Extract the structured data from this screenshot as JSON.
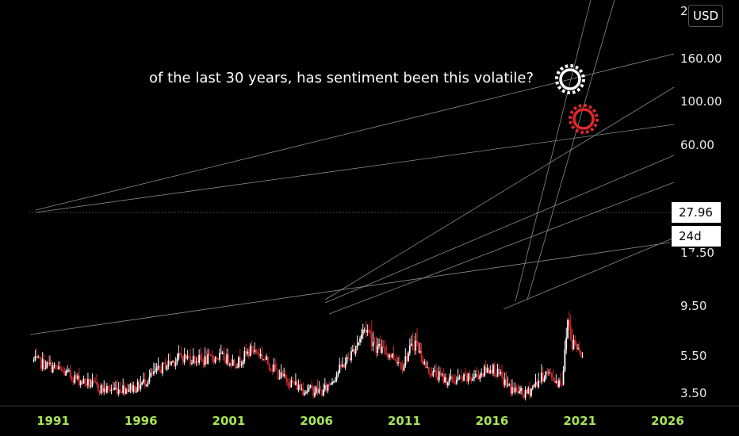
{
  "chart_data": {
    "type": "candlestick",
    "annotation": "of the last 30 years, has sentiment been this volatile?",
    "currency": "USD",
    "y_scale": "log",
    "ylim": [
      3.0,
      280
    ],
    "y_ticks": [
      "2",
      "160.00",
      "100.00",
      "60.00",
      "27.96",
      "17.50",
      "9.50",
      "5.50",
      "3.50"
    ],
    "x_ticks": [
      "1991",
      "1996",
      "2001",
      "2006",
      "2011",
      "2016",
      "2021",
      "2026"
    ],
    "xlim": [
      1988.0,
      2026.8
    ],
    "last_price": "27.96",
    "countdown": "24d 17h",
    "colors": {
      "up": "#ffffff",
      "down": "#e0282e",
      "axis_text": "#e8e8e8",
      "x_text": "#a6e35a",
      "marker_white": "#ffffff",
      "marker_red": "#e0282e"
    },
    "anchors": [
      [
        1989.9,
        22
      ],
      [
        1991.0,
        19
      ],
      [
        1992.5,
        14.5
      ],
      [
        1993.9,
        11.8
      ],
      [
        1995.8,
        12.5
      ],
      [
        1997.4,
        20
      ],
      [
        1998.3,
        24
      ],
      [
        1999.5,
        22
      ],
      [
        2000.5,
        24
      ],
      [
        2001.5,
        21
      ],
      [
        2002.3,
        28
      ],
      [
        2002.7,
        26
      ],
      [
        2004.0,
        15.5
      ],
      [
        2005.2,
        12.0
      ],
      [
        2006.4,
        11.3
      ],
      [
        2007.4,
        19
      ],
      [
        2007.9,
        24
      ],
      [
        2008.8,
        45
      ],
      [
        2009.5,
        29
      ],
      [
        2010.4,
        24
      ],
      [
        2010.9,
        20
      ],
      [
        2011.6,
        34
      ],
      [
        2012.3,
        18
      ],
      [
        2013.5,
        14.2
      ],
      [
        2014.8,
        15.0
      ],
      [
        2016.0,
        19
      ],
      [
        2017.0,
        12.2
      ],
      [
        2017.9,
        10.5
      ],
      [
        2018.5,
        13.5
      ],
      [
        2019.1,
        17
      ],
      [
        2019.7,
        14
      ],
      [
        2020.0,
        14.2
      ],
      [
        2020.2,
        32
      ],
      [
        2020.3,
        55
      ],
      [
        2020.6,
        32
      ],
      [
        2020.9,
        29
      ],
      [
        2021.1,
        25
      ],
      [
        2021.2,
        27.96
      ]
    ]
  }
}
